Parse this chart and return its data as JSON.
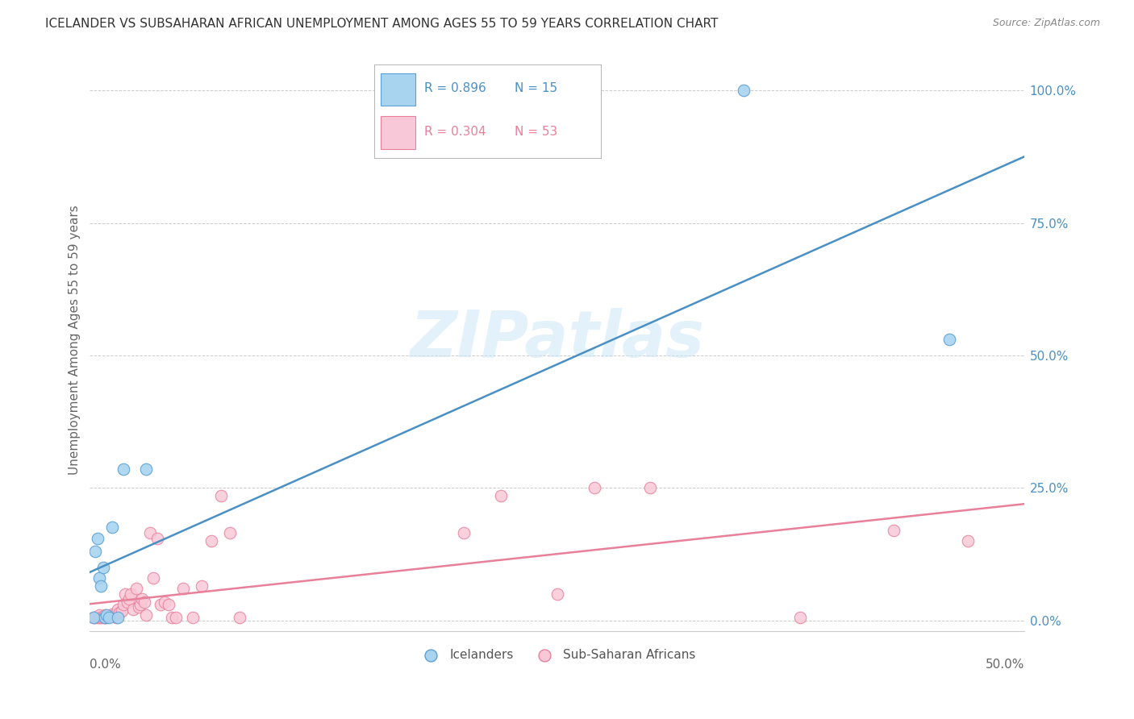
{
  "title": "ICELANDER VS SUBSAHARAN AFRICAN UNEMPLOYMENT AMONG AGES 55 TO 59 YEARS CORRELATION CHART",
  "source": "Source: ZipAtlas.com",
  "ylabel": "Unemployment Among Ages 55 to 59 years",
  "xlim": [
    0.0,
    0.5
  ],
  "ylim": [
    -0.02,
    1.08
  ],
  "ytick_values": [
    0.0,
    0.25,
    0.5,
    0.75,
    1.0
  ],
  "background_color": "#ffffff",
  "icelander_color": "#a8d4f0",
  "icelander_edge_color": "#5b9fd4",
  "icelander_R": 0.896,
  "icelander_N": 15,
  "icelander_line_color": "#4a90c4",
  "subsaharan_color": "#f9c8d8",
  "subsaharan_edge_color": "#e8809a",
  "subsaharan_R": 0.304,
  "subsaharan_N": 53,
  "subsaharan_line_color": "#e8809a",
  "ytick_color": "#4a90c4",
  "icelander_x": [
    0.002,
    0.003,
    0.004,
    0.005,
    0.006,
    0.007,
    0.008,
    0.009,
    0.01,
    0.012,
    0.015,
    0.018,
    0.03,
    0.35,
    0.46
  ],
  "icelander_y": [
    0.005,
    0.13,
    0.155,
    0.08,
    0.065,
    0.1,
    0.005,
    0.01,
    0.005,
    0.175,
    0.005,
    0.285,
    0.285,
    1.0,
    0.53
  ],
  "subsaharan_x": [
    0.002,
    0.003,
    0.004,
    0.005,
    0.005,
    0.006,
    0.007,
    0.008,
    0.008,
    0.009,
    0.01,
    0.011,
    0.012,
    0.013,
    0.014,
    0.015,
    0.016,
    0.017,
    0.018,
    0.019,
    0.02,
    0.021,
    0.022,
    0.023,
    0.025,
    0.026,
    0.027,
    0.028,
    0.029,
    0.03,
    0.032,
    0.034,
    0.036,
    0.038,
    0.04,
    0.042,
    0.044,
    0.046,
    0.05,
    0.055,
    0.06,
    0.065,
    0.07,
    0.075,
    0.08,
    0.2,
    0.22,
    0.25,
    0.27,
    0.3,
    0.38,
    0.43,
    0.47
  ],
  "subsaharan_y": [
    0.005,
    0.005,
    0.005,
    0.005,
    0.01,
    0.005,
    0.005,
    0.005,
    0.01,
    0.005,
    0.008,
    0.008,
    0.012,
    0.01,
    0.005,
    0.02,
    0.015,
    0.018,
    0.03,
    0.05,
    0.035,
    0.04,
    0.05,
    0.02,
    0.06,
    0.025,
    0.03,
    0.04,
    0.035,
    0.01,
    0.165,
    0.08,
    0.155,
    0.03,
    0.035,
    0.03,
    0.005,
    0.005,
    0.06,
    0.005,
    0.065,
    0.15,
    0.235,
    0.165,
    0.005,
    0.165,
    0.235,
    0.05,
    0.25,
    0.25,
    0.005,
    0.17,
    0.15
  ]
}
